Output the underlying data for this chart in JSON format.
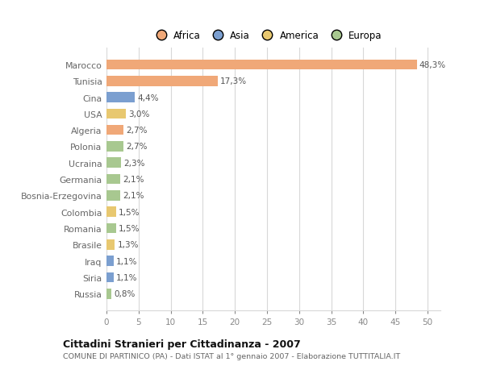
{
  "countries": [
    "Marocco",
    "Tunisia",
    "Cina",
    "USA",
    "Algeria",
    "Polonia",
    "Ucraina",
    "Germania",
    "Bosnia-Erzegovina",
    "Colombia",
    "Romania",
    "Brasile",
    "Iraq",
    "Siria",
    "Russia"
  ],
  "values": [
    48.3,
    17.3,
    4.4,
    3.0,
    2.7,
    2.7,
    2.3,
    2.1,
    2.1,
    1.5,
    1.5,
    1.3,
    1.1,
    1.1,
    0.8
  ],
  "labels": [
    "48,3%",
    "17,3%",
    "4,4%",
    "3,0%",
    "2,7%",
    "2,7%",
    "2,3%",
    "2,1%",
    "2,1%",
    "1,5%",
    "1,5%",
    "1,3%",
    "1,1%",
    "1,1%",
    "0,8%"
  ],
  "continents": [
    "Africa",
    "Africa",
    "Asia",
    "America",
    "Africa",
    "Europa",
    "Europa",
    "Europa",
    "Europa",
    "America",
    "Europa",
    "America",
    "Asia",
    "Asia",
    "Europa"
  ],
  "colors": {
    "Africa": "#F0A878",
    "Asia": "#7B9FD0",
    "America": "#E8C870",
    "Europa": "#A8C890"
  },
  "legend_labels": [
    "Africa",
    "Asia",
    "America",
    "Europa"
  ],
  "legend_colors": [
    "#F0A878",
    "#7B9FD0",
    "#E8C870",
    "#A8C890"
  ],
  "xlim": [
    0,
    52
  ],
  "xticks": [
    0,
    5,
    10,
    15,
    20,
    25,
    30,
    35,
    40,
    45,
    50
  ],
  "title": "Cittadini Stranieri per Cittadinanza - 2007",
  "subtitle": "COMUNE DI PARTINICO (PA) - Dati ISTAT al 1° gennaio 2007 - Elaborazione TUTTITALIA.IT",
  "bg_color": "#ffffff",
  "grid_color": "#d8d8d8"
}
